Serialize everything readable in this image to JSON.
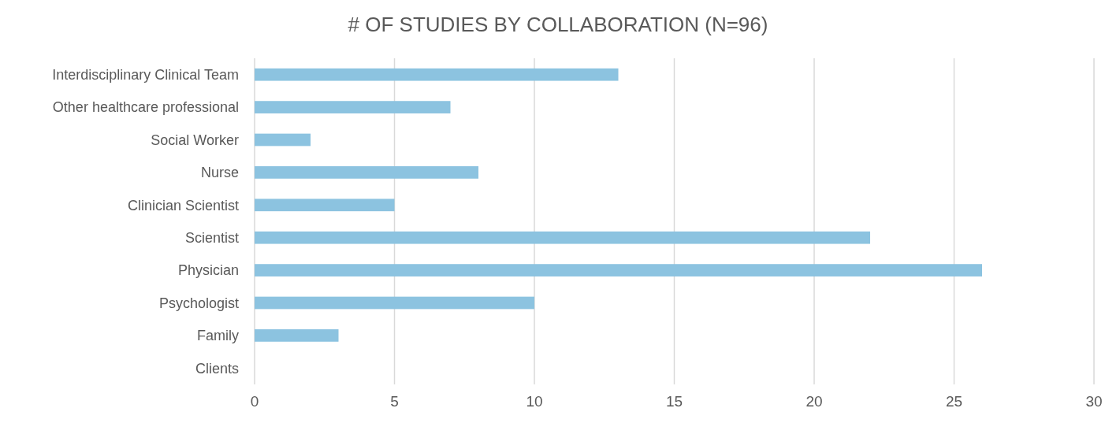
{
  "chart_data": {
    "type": "bar",
    "orientation": "horizontal",
    "title": "# OF STUDIES BY COLLABORATION (N=96)",
    "categories": [
      "Interdisciplinary Clinical Team",
      "Other healthcare professional",
      "Social Worker",
      "Nurse",
      "Clinician Scientist",
      "Scientist",
      "Physician",
      "Psychologist",
      "Family",
      "Clients"
    ],
    "values": [
      13,
      7,
      2,
      8,
      5,
      22,
      26,
      10,
      3,
      0
    ],
    "color": "#8cc3e0",
    "xlim": [
      0,
      30
    ],
    "xticks": [
      0,
      5,
      10,
      15,
      20,
      25,
      30
    ],
    "grid": "x"
  }
}
